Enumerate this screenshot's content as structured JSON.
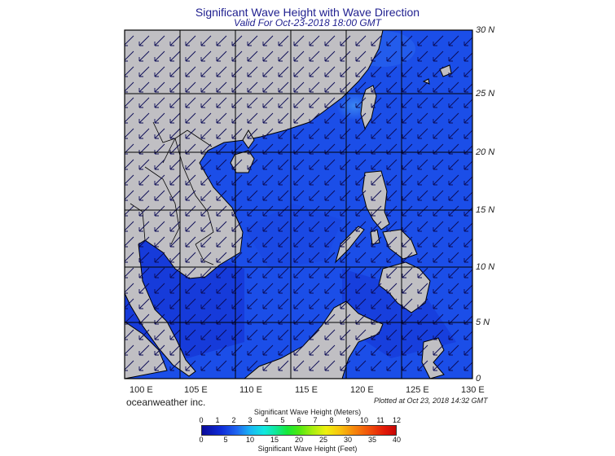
{
  "title": "Significant Wave Height with Wave Direction",
  "subtitle": "Valid For Oct-23-2018 18:00 GMT",
  "lat_labels": [
    "30 N",
    "25 N",
    "20 N",
    "15 N",
    "10 N",
    "5 N",
    "0"
  ],
  "lon_labels": [
    "100 E",
    "105 E",
    "110 E",
    "115 E",
    "120 E",
    "125 E",
    "130 E"
  ],
  "brand": "oceanweather inc.",
  "plotted": "Plotted at Oct 23, 2018 14:32 GMT",
  "colorbar": {
    "meters_title": "Significant Wave Height (Meters)",
    "meters_ticks": [
      "0",
      "1",
      "2",
      "3",
      "4",
      "5",
      "6",
      "7",
      "8",
      "9",
      "10",
      "11",
      "12"
    ],
    "feet_ticks": [
      "0",
      "5",
      "10",
      "15",
      "20",
      "25",
      "30",
      "35",
      "40"
    ],
    "feet_title": "Significant Wave Height (Feet)"
  },
  "colors": {
    "land": "#c0bfc3",
    "sea": "#1b4ee8",
    "sea_dark": "#1536d6",
    "sea_light": "#2f74f0",
    "arrow": "#0b0b55",
    "grid": "#000000"
  },
  "wave_direction": "from north-east toward south-west"
}
